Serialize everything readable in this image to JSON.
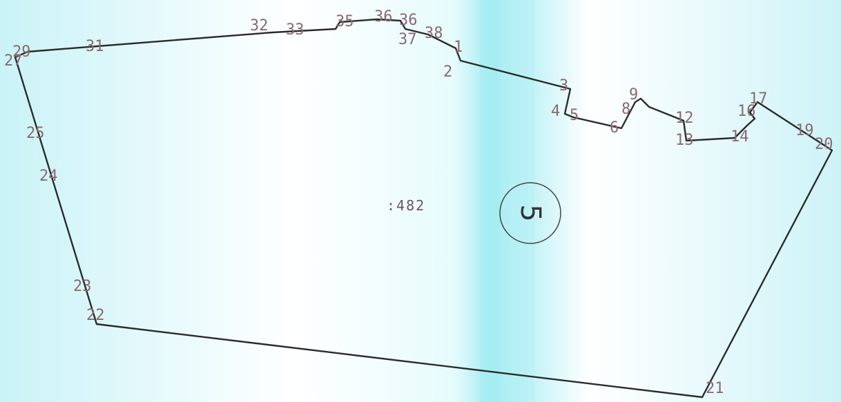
{
  "parcel": {
    "area_label": ":482",
    "section_number": "5",
    "colors": {
      "boundary": "#2a2a2a",
      "boundary_inner": "#7a2a3a",
      "label": "#8a6a70",
      "background_left": "#c9f3f7",
      "background_mid": "#ffffff",
      "background_band": "#a8eef3"
    }
  },
  "vertices": [
    {
      "label": "1"
    },
    {
      "label": "2"
    },
    {
      "label": "3"
    },
    {
      "label": "4"
    },
    {
      "label": "5"
    },
    {
      "label": "6"
    },
    {
      "label": "8"
    },
    {
      "label": "9"
    },
    {
      "label": "12"
    },
    {
      "label": "13"
    },
    {
      "label": "14"
    },
    {
      "label": "16"
    },
    {
      "label": "17"
    },
    {
      "label": "19"
    },
    {
      "label": "20"
    },
    {
      "label": "21"
    },
    {
      "label": "22"
    },
    {
      "label": "23"
    },
    {
      "label": "24"
    },
    {
      "label": "25"
    },
    {
      "label": "27"
    },
    {
      "label": "29"
    },
    {
      "label": "31"
    },
    {
      "label": "32"
    },
    {
      "label": "33"
    },
    {
      "label": "35"
    },
    {
      "label": "36"
    },
    {
      "label": "36"
    },
    {
      "label": "37"
    },
    {
      "label": "38"
    }
  ]
}
